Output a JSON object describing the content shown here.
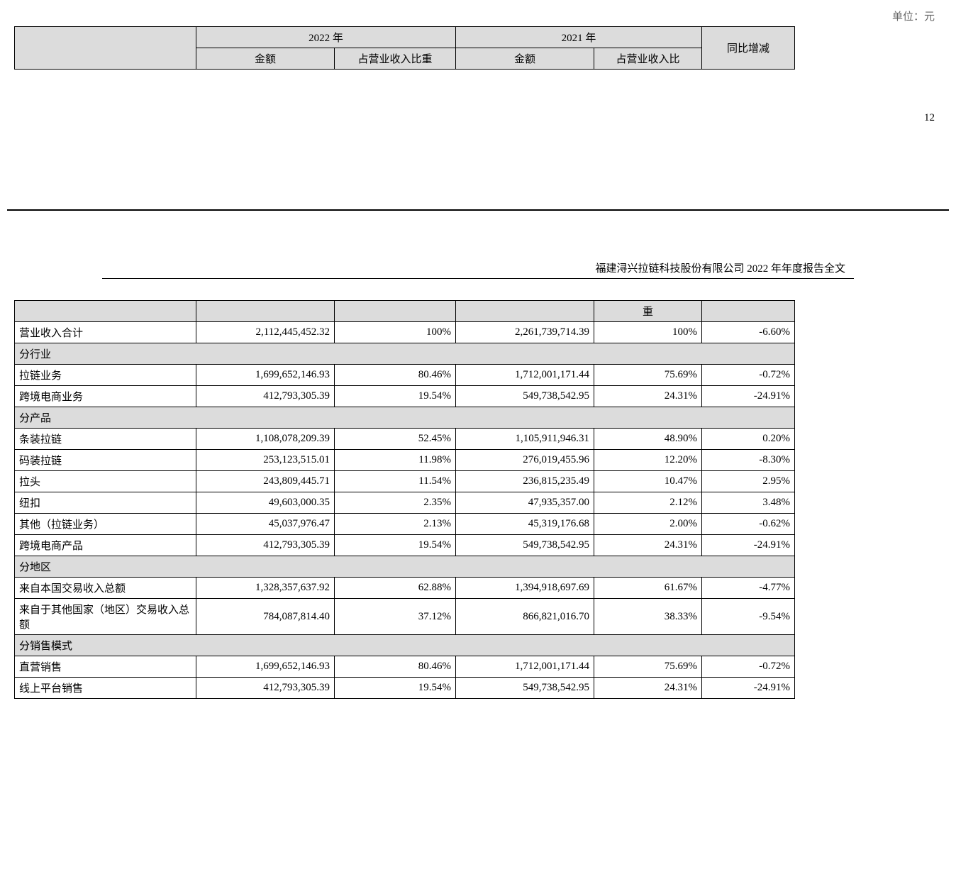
{
  "unit_label": "单位：元",
  "page_number": "12",
  "doc_header": "福建浔兴拉链科技股份有限公司 2022 年年度报告全文",
  "header_table": {
    "year_2022": "2022 年",
    "year_2021": "2021 年",
    "yoy": "同比增减",
    "amount": "金额",
    "pct_2022": "占营业收入比重",
    "pct_2021": "占营业收入比"
  },
  "continuation_header_cell": "重",
  "total_row": {
    "label": "营业收入合计",
    "amt2022": "2,112,445,452.32",
    "pct2022": "100%",
    "amt2021": "2,261,739,714.39",
    "pct2021": "100%",
    "change": "-6.60%"
  },
  "section_industry": "分行业",
  "industry_rows": [
    {
      "label": "拉链业务",
      "amt2022": "1,699,652,146.93",
      "pct2022": "80.46%",
      "amt2021": "1,712,001,171.44",
      "pct2021": "75.69%",
      "change": "-0.72%"
    },
    {
      "label": "跨境电商业务",
      "amt2022": "412,793,305.39",
      "pct2022": "19.54%",
      "amt2021": "549,738,542.95",
      "pct2021": "24.31%",
      "change": "-24.91%"
    }
  ],
  "section_product": "分产品",
  "product_rows": [
    {
      "label": "条装拉链",
      "amt2022": "1,108,078,209.39",
      "pct2022": "52.45%",
      "amt2021": "1,105,911,946.31",
      "pct2021": "48.90%",
      "change": "0.20%"
    },
    {
      "label": "码装拉链",
      "amt2022": "253,123,515.01",
      "pct2022": "11.98%",
      "amt2021": "276,019,455.96",
      "pct2021": "12.20%",
      "change": "-8.30%"
    },
    {
      "label": "拉头",
      "amt2022": "243,809,445.71",
      "pct2022": "11.54%",
      "amt2021": "236,815,235.49",
      "pct2021": "10.47%",
      "change": "2.95%"
    },
    {
      "label": "纽扣",
      "amt2022": "49,603,000.35",
      "pct2022": "2.35%",
      "amt2021": "47,935,357.00",
      "pct2021": "2.12%",
      "change": "3.48%"
    },
    {
      "label": "其他（拉链业务）",
      "amt2022": "45,037,976.47",
      "pct2022": "2.13%",
      "amt2021": "45,319,176.68",
      "pct2021": "2.00%",
      "change": "-0.62%"
    },
    {
      "label": "跨境电商产品",
      "amt2022": "412,793,305.39",
      "pct2022": "19.54%",
      "amt2021": "549,738,542.95",
      "pct2021": "24.31%",
      "change": "-24.91%"
    }
  ],
  "section_region": "分地区",
  "region_rows": [
    {
      "label": "来自本国交易收入总额",
      "amt2022": "1,328,357,637.92",
      "pct2022": "62.88%",
      "amt2021": "1,394,918,697.69",
      "pct2021": "61.67%",
      "change": "-4.77%"
    },
    {
      "label": "来自于其他国家（地区）交易收入总额",
      "amt2022": "784,087,814.40",
      "pct2022": "37.12%",
      "amt2021": "866,821,016.70",
      "pct2021": "38.33%",
      "change": "-9.54%"
    }
  ],
  "section_sales": "分销售模式",
  "sales_rows": [
    {
      "label": "直营销售",
      "amt2022": "1,699,652,146.93",
      "pct2022": "80.46%",
      "amt2021": "1,712,001,171.44",
      "pct2021": "75.69%",
      "change": "-0.72%"
    },
    {
      "label": "线上平台销售",
      "amt2022": "412,793,305.39",
      "pct2022": "19.54%",
      "amt2021": "549,738,542.95",
      "pct2021": "24.31%",
      "change": "-24.91%"
    }
  ]
}
